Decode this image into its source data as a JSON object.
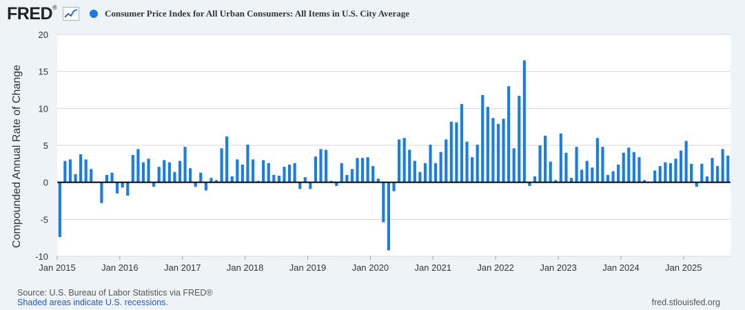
{
  "header": {
    "logo_text": "FRED",
    "logo_mark": "®",
    "series_title": "Consumer Price Index for All Urban Consumers: All Items in U.S. City Average"
  },
  "colors": {
    "series": "#1a7de6",
    "plot_bg": "#ffffff",
    "page_bg": "#eef3f7",
    "grid": "#d7d7d7"
  },
  "chart_data": {
    "type": "bar",
    "title": "Consumer Price Index for All Urban Consumers: All Items in U.S. City Average",
    "xlabel": "",
    "ylabel": "Compounded Annual Rate of Change",
    "ylim": [
      -10,
      20
    ],
    "yticks": [
      20,
      15,
      10,
      5,
      0,
      -5,
      -10
    ],
    "xlim_months": [
      0,
      129
    ],
    "xticks": [
      {
        "label": "Jan 2015",
        "month": 0
      },
      {
        "label": "Jan 2016",
        "month": 12
      },
      {
        "label": "Jan 2017",
        "month": 24
      },
      {
        "label": "Jan 2018",
        "month": 36
      },
      {
        "label": "Jan 2019",
        "month": 48
      },
      {
        "label": "Jan 2020",
        "month": 60
      },
      {
        "label": "Jan 2021",
        "month": 72
      },
      {
        "label": "Jan 2022",
        "month": 84
      },
      {
        "label": "Jan 2023",
        "month": 96
      },
      {
        "label": "Jan 2024",
        "month": 108
      },
      {
        "label": "Jan 2025",
        "month": 120
      }
    ],
    "start": "2015-01",
    "frequency": "monthly",
    "series": [
      {
        "name": "Consumer Price Index for All Urban Consumers: All Items in U.S. City Average",
        "values": [
          -7.4,
          2.9,
          3.1,
          1.1,
          3.8,
          3.1,
          1.8,
          0.0,
          -2.8,
          1.0,
          1.3,
          -1.5,
          -0.7,
          -1.8,
          3.7,
          4.5,
          2.7,
          3.2,
          -0.6,
          2.1,
          3.0,
          2.7,
          1.4,
          2.9,
          4.8,
          1.9,
          -0.6,
          1.3,
          -1.1,
          0.6,
          0.3,
          4.6,
          6.2,
          0.8,
          3.1,
          2.4,
          5.1,
          3.1,
          0.2,
          3.0,
          2.6,
          1.0,
          0.9,
          2.1,
          2.4,
          2.6,
          -0.9,
          0.7,
          -0.9,
          3.5,
          4.5,
          4.4,
          0.2,
          -0.5,
          2.6,
          1.0,
          1.8,
          3.3,
          3.3,
          3.4,
          2.2,
          0.5,
          -5.4,
          -9.2,
          -1.2,
          5.8,
          6.0,
          4.4,
          2.9,
          1.4,
          2.6,
          5.1,
          2.6,
          4.1,
          5.8,
          8.2,
          8.1,
          10.6,
          5.5,
          3.4,
          5.1,
          11.8,
          10.2,
          8.7,
          7.9,
          8.6,
          13.0,
          4.6,
          11.7,
          16.5,
          -0.5,
          0.8,
          5.0,
          6.3,
          2.8,
          0.3,
          6.6,
          4.0,
          0.6,
          4.8,
          1.7,
          2.9,
          2.0,
          6.0,
          4.8,
          1.0,
          1.5,
          2.4,
          4.0,
          4.7,
          4.1,
          3.4,
          0.3,
          0.0,
          1.6,
          2.2,
          2.7,
          2.6,
          3.2,
          4.3,
          5.6,
          2.5,
          -0.6,
          2.5,
          0.8,
          3.3,
          2.2,
          4.5,
          3.6
        ]
      }
    ]
  },
  "footer": {
    "source": "Source: U.S. Bureau of Labor Statistics via FRED®",
    "recession_note": "Shaded areas indicate U.S. recessions.",
    "site": "fred.stlouisfed.org"
  }
}
